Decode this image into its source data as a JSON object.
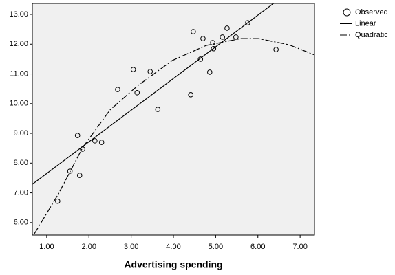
{
  "chart_data": {
    "type": "scatter",
    "xlabel": "Advertising spending",
    "xlim": [
      0.66,
      7.34
    ],
    "ylim": [
      5.58,
      13.37
    ],
    "xticks": [
      {
        "value": 1,
        "label": "1.00"
      },
      {
        "value": 2,
        "label": "2.00"
      },
      {
        "value": 3,
        "label": "3.00"
      },
      {
        "value": 4,
        "label": "4.00"
      },
      {
        "value": 5,
        "label": "5.00"
      },
      {
        "value": 6,
        "label": "6.00"
      },
      {
        "value": 7,
        "label": "7.00"
      }
    ],
    "yticks": [
      {
        "value": 6,
        "label": "6.00"
      },
      {
        "value": 7,
        "label": "7.00"
      },
      {
        "value": 8,
        "label": "8.00"
      },
      {
        "value": 9,
        "label": "9.00"
      },
      {
        "value": 10,
        "label": "10.00"
      },
      {
        "value": 11,
        "label": "11.00"
      },
      {
        "value": 12,
        "label": "12.00"
      },
      {
        "value": 13,
        "label": "13.00"
      }
    ],
    "legend": "right",
    "series": [
      {
        "name": "Observed",
        "type": "scatter",
        "color": "#000000",
        "x": [
          1.26,
          1.55,
          1.73,
          1.78,
          1.85,
          2.14,
          2.3,
          2.68,
          3.05,
          3.14,
          3.45,
          3.63,
          4.41,
          4.47,
          4.7,
          4.64,
          4.86,
          4.93,
          4.95,
          5.16,
          5.27,
          5.48,
          5.76,
          6.43
        ],
        "values": [
          6.72,
          7.73,
          8.93,
          7.59,
          8.47,
          8.75,
          8.7,
          10.48,
          11.15,
          10.37,
          11.08,
          9.81,
          10.3,
          12.42,
          12.19,
          11.5,
          11.06,
          12.05,
          11.85,
          12.24,
          12.54,
          12.24,
          12.72,
          11.82
        ]
      },
      {
        "name": "Linear",
        "type": "line",
        "color": "#000000",
        "x": [
          0.66,
          6.37
        ],
        "values": [
          7.29,
          13.37
        ]
      },
      {
        "name": "Quadratic",
        "type": "dashdot",
        "color": "#000000",
        "x": [
          0.71,
          1.28,
          1.85,
          2.5,
          3.15,
          3.97,
          4.78,
          5.6,
          6.01,
          6.74,
          7.34
        ],
        "values": [
          5.63,
          6.97,
          8.52,
          9.79,
          10.6,
          11.45,
          11.96,
          12.19,
          12.19,
          11.98,
          11.64
        ]
      }
    ]
  }
}
